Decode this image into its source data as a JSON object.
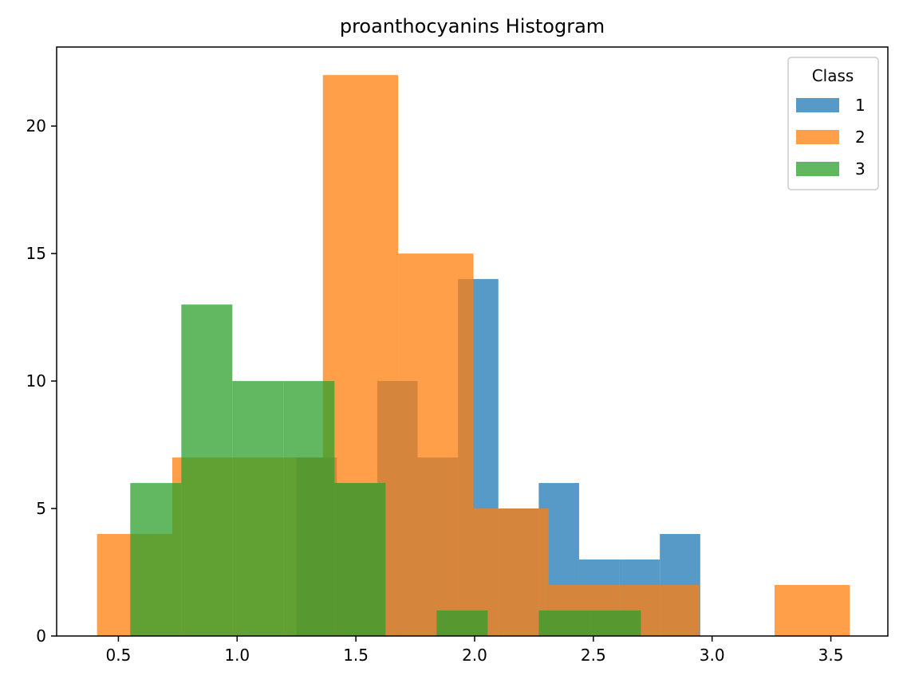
{
  "chart_data": {
    "type": "histogram",
    "title": "proanthocyanins Histogram",
    "xlabel": "",
    "ylabel": "",
    "xlim": [
      0.24,
      3.74
    ],
    "ylim": [
      0,
      23.1
    ],
    "xticks": [
      0.5,
      1.0,
      1.5,
      2.0,
      2.5,
      3.0,
      3.5
    ],
    "xtick_labels": [
      "0.5",
      "1.0",
      "1.5",
      "2.0",
      "2.5",
      "3.0",
      "3.5"
    ],
    "yticks": [
      0,
      5,
      10,
      15,
      20
    ],
    "ytick_labels": [
      "0",
      "5",
      "10",
      "15",
      "20"
    ],
    "grid": false,
    "alpha": 0.75,
    "legend": {
      "title": "Class",
      "position": "top-right"
    },
    "series": [
      {
        "name": "1",
        "color": "#1f77b4",
        "bin_edges": [
          1.25,
          1.42,
          1.59,
          1.76,
          1.93,
          2.1,
          2.27,
          2.44,
          2.61,
          2.78,
          2.95
        ],
        "counts": [
          7,
          6,
          10,
          7,
          14,
          5,
          6,
          3,
          3,
          4
        ]
      },
      {
        "name": "2",
        "color": "#ff7f0e",
        "bin_edges": [
          0.41,
          0.727,
          1.044,
          1.361,
          1.678,
          1.995,
          2.312,
          2.629,
          2.946,
          3.263,
          3.58
        ],
        "counts": [
          4,
          7,
          7,
          22,
          15,
          5,
          2,
          2,
          0,
          2
        ]
      },
      {
        "name": "3",
        "color": "#2ca02c",
        "bin_edges": [
          0.55,
          0.765,
          0.98,
          1.195,
          1.41,
          1.625,
          1.84,
          2.055,
          2.27,
          2.485,
          2.7
        ],
        "counts": [
          6,
          13,
          10,
          10,
          6,
          0,
          1,
          0,
          1,
          1
        ]
      }
    ]
  }
}
